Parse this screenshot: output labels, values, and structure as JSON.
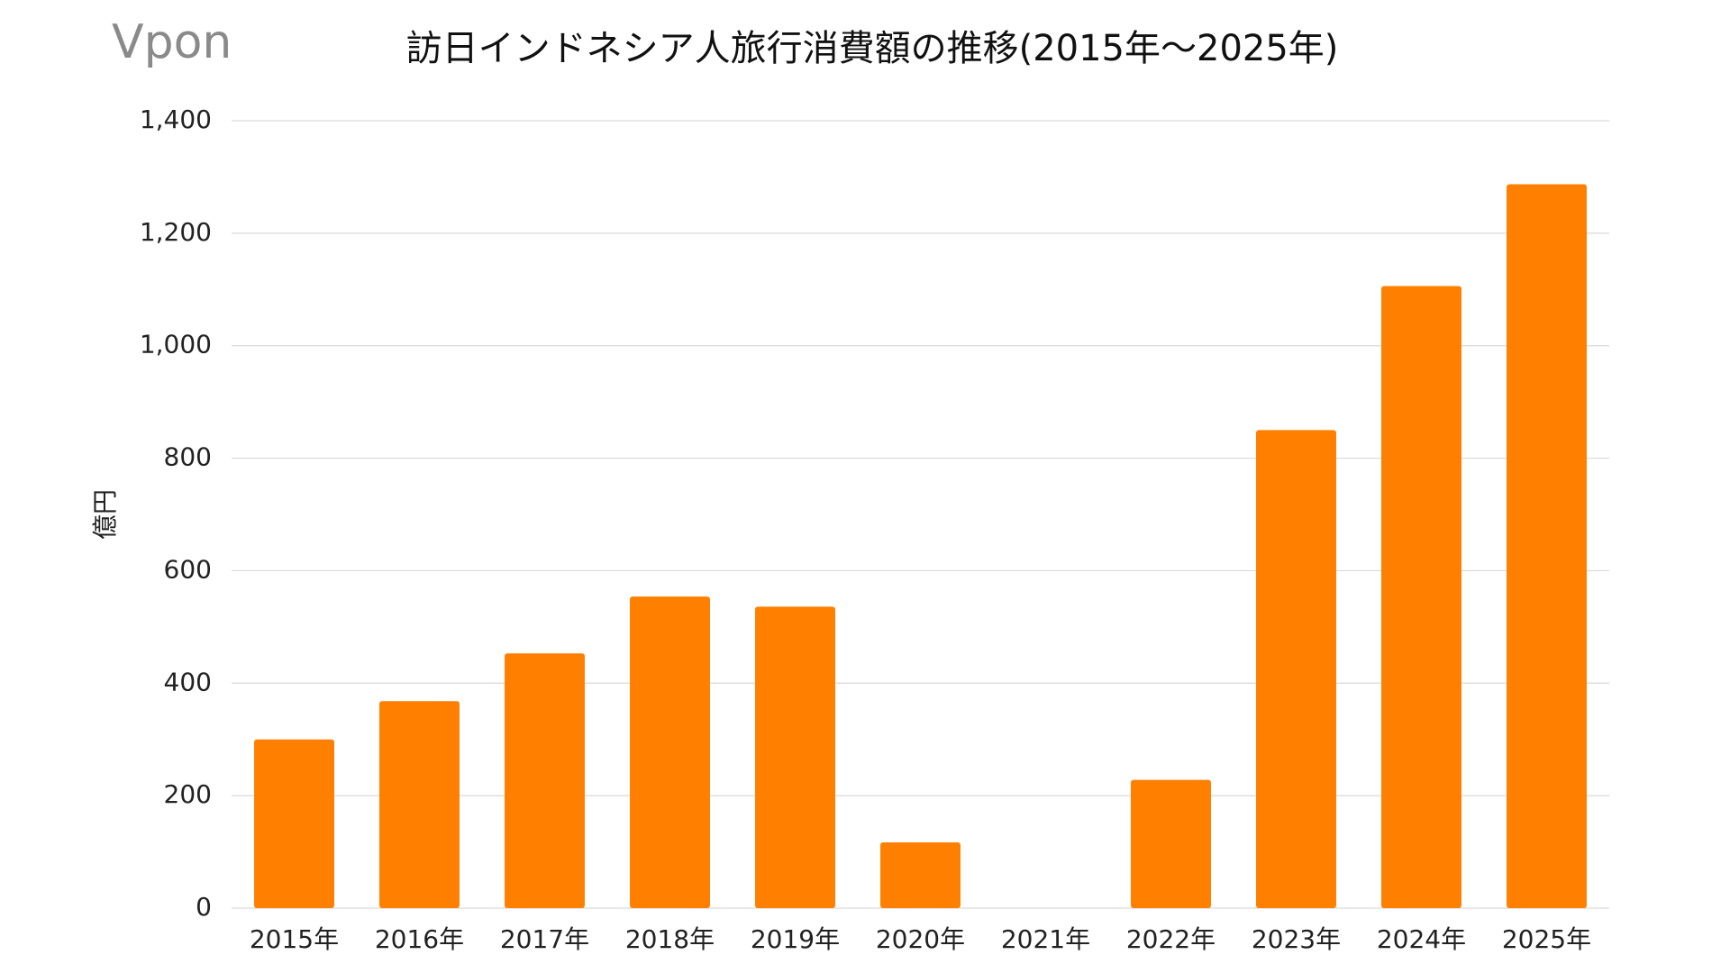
{
  "logo": "Vpon",
  "chart_data": {
    "type": "bar",
    "title": "訪日インドネシア人旅行消費額の推移(2015年～2025年)",
    "y_label": "億円",
    "categories": [
      "2015年",
      "2016年",
      "2017年",
      "2018年",
      "2019年",
      "2020年",
      "2021年",
      "2022年",
      "2023年",
      "2024年",
      "2025年"
    ],
    "values": [
      300,
      368,
      453,
      554,
      536,
      117,
      0,
      228,
      850,
      1106,
      1287
    ],
    "color": "#ff8000",
    "ylim": [
      0,
      1400
    ],
    "yticks": [
      0,
      200,
      400,
      600,
      800,
      {
        "value": 1000,
        "label": "1,000"
      },
      {
        "value": 1200,
        "label": "1,200"
      },
      {
        "value": 1400,
        "label": "1,400"
      }
    ],
    "grid": true
  }
}
